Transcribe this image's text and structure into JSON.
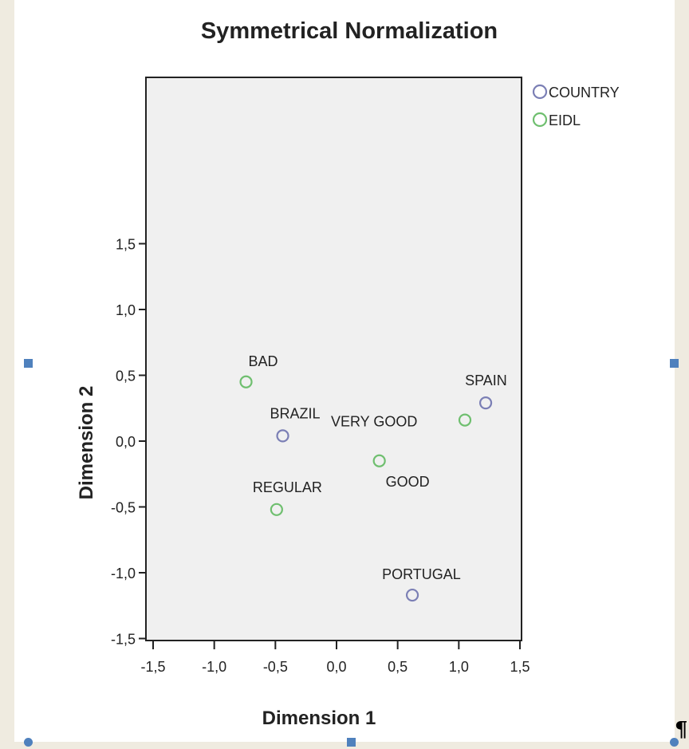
{
  "chart_data": {
    "type": "scatter",
    "title": "Symmetrical Normalization",
    "xlabel": "Dimension 1",
    "ylabel": "Dimension 2",
    "xlim": [
      -1.5,
      1.5
    ],
    "ylim": [
      -1.5,
      1.5
    ],
    "xticks": [
      "-1,5",
      "-1,0",
      "-0,5",
      "0,0",
      "0,5",
      "1,0",
      "1,5"
    ],
    "yticks": [
      "1,5",
      "1,0",
      "0,5",
      "0,0",
      "-0,5",
      "-1,0",
      "-1,5"
    ],
    "grid": false,
    "legend_position": "top-right, outside plot",
    "series": [
      {
        "name": "COUNTRY",
        "color": "#7b7fb5",
        "points": [
          {
            "label": "SPAIN",
            "x": 1.22,
            "y": 0.29
          },
          {
            "label": "BRAZIL",
            "x": -0.44,
            "y": 0.04
          },
          {
            "label": "PORTUGAL",
            "x": 0.62,
            "y": -1.17
          }
        ]
      },
      {
        "name": "EIDL",
        "color": "#6fbf6f",
        "points": [
          {
            "label": "BAD",
            "x": -0.74,
            "y": 0.45
          },
          {
            "label": "VERY GOOD",
            "x": 1.05,
            "y": 0.16
          },
          {
            "label": "GOOD",
            "x": 0.35,
            "y": -0.15
          },
          {
            "label": "REGULAR",
            "x": -0.49,
            "y": -0.52
          }
        ]
      }
    ]
  }
}
